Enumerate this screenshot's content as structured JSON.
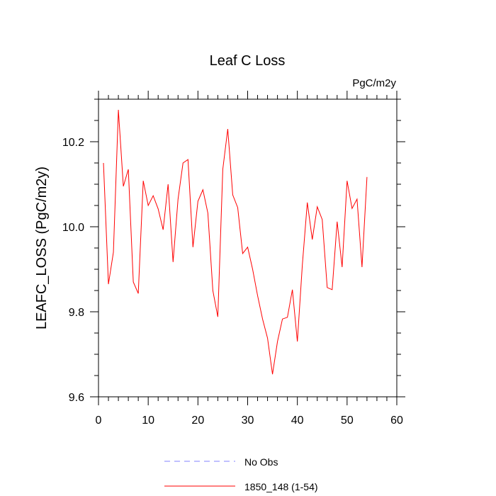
{
  "chart_data": {
    "type": "line",
    "title": "Leaf C Loss",
    "units": "PgC/m2y",
    "xlabel": "",
    "ylabel": "LEAFC_LOSS  (PgC/m2y)",
    "xlim": [
      0,
      60
    ],
    "ylim": [
      9.6,
      10.3
    ],
    "xticks": [
      0,
      10,
      20,
      30,
      40,
      50,
      60
    ],
    "xtick_labels": [
      "0",
      "10",
      "20",
      "30",
      "40",
      "50",
      "60"
    ],
    "yticks": [
      9.6,
      9.8,
      10.0,
      10.2
    ],
    "ytick_labels": [
      "9.6",
      "9.8",
      "10.0",
      "10.2"
    ],
    "grid": false,
    "legend_position": "bottom-center",
    "series": [
      {
        "name": "No Obs",
        "color": "#8080ff",
        "style": "dashed",
        "x": [],
        "values": []
      },
      {
        "name": "1850_148 (1-54)",
        "color": "#ff0000",
        "style": "solid",
        "x": [
          1,
          2,
          3,
          4,
          5,
          6,
          7,
          8,
          9,
          10,
          11,
          12,
          13,
          14,
          15,
          16,
          17,
          18,
          19,
          20,
          21,
          22,
          23,
          24,
          25,
          26,
          27,
          28,
          29,
          30,
          31,
          32,
          33,
          34,
          35,
          36,
          37,
          38,
          39,
          40,
          41,
          42,
          43,
          44,
          45,
          46,
          47,
          48,
          49,
          50,
          51,
          52,
          53,
          54
        ],
        "values": [
          10.15,
          9.865,
          9.94,
          10.275,
          10.095,
          10.135,
          9.87,
          9.843,
          10.108,
          10.05,
          10.073,
          10.042,
          9.993,
          10.1,
          9.917,
          10.065,
          10.15,
          10.158,
          9.952,
          10.06,
          10.087,
          10.032,
          9.85,
          9.788,
          10.135,
          10.23,
          10.075,
          10.045,
          9.937,
          9.952,
          9.9,
          9.838,
          9.783,
          9.738,
          9.653,
          9.73,
          9.783,
          9.787,
          9.852,
          9.73,
          9.91,
          10.057,
          9.97,
          10.047,
          10.017,
          9.857,
          9.852,
          10.012,
          9.905,
          10.108,
          10.043,
          10.065,
          9.905,
          10.117
        ]
      }
    ]
  }
}
